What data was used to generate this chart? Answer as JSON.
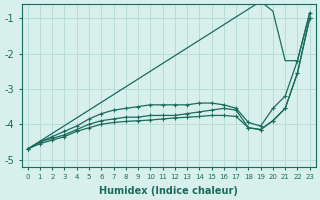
{
  "x": [
    0,
    1,
    2,
    3,
    4,
    5,
    6,
    7,
    8,
    9,
    10,
    11,
    12,
    13,
    14,
    15,
    16,
    17,
    18,
    19,
    20,
    21,
    22,
    23
  ],
  "line_diagonal": [
    -4.7,
    -4.48,
    -4.26,
    -4.04,
    -3.82,
    -3.6,
    -3.38,
    -3.16,
    -2.94,
    -2.72,
    -2.5,
    -2.28,
    -2.06,
    -1.84,
    -1.62,
    -1.4,
    -1.18,
    -0.96,
    -0.74,
    -0.52,
    -0.8,
    -2.2,
    -2.2,
    -0.85
  ],
  "line_upper": [
    -4.7,
    -4.5,
    -4.35,
    -4.2,
    -4.05,
    -3.85,
    -3.7,
    -3.6,
    -3.55,
    -3.5,
    -3.45,
    -3.45,
    -3.45,
    -3.45,
    -3.4,
    -3.4,
    -3.45,
    -3.55,
    -3.95,
    -4.05,
    -3.55,
    -3.2,
    -2.2,
    -0.85
  ],
  "line_mid": [
    -4.7,
    -4.5,
    -4.4,
    -4.3,
    -4.15,
    -4.0,
    -3.9,
    -3.85,
    -3.8,
    -3.8,
    -3.75,
    -3.75,
    -3.75,
    -3.7,
    -3.65,
    -3.6,
    -3.55,
    -3.6,
    -4.1,
    -4.15,
    -3.9,
    -3.55,
    -2.55,
    -1.0
  ],
  "line_lower": [
    -4.7,
    -4.55,
    -4.45,
    -4.35,
    -4.2,
    -4.1,
    -4.0,
    -3.95,
    -3.92,
    -3.9,
    -3.88,
    -3.85,
    -3.82,
    -3.8,
    -3.78,
    -3.75,
    -3.75,
    -3.78,
    -4.1,
    -4.15,
    -3.9,
    -3.55,
    -2.55,
    -1.0
  ],
  "color": "#1a6b5c",
  "bg_color": "#d8f0ec",
  "grid_color": "#b8dcd6",
  "yticks": [
    -1,
    -2,
    -3,
    -4,
    -5
  ],
  "ylabel_ticks": [
    "-1",
    "-2",
    "-3",
    "-4",
    "-5"
  ],
  "xticks": [
    0,
    1,
    2,
    3,
    4,
    5,
    6,
    7,
    8,
    9,
    10,
    11,
    12,
    13,
    14,
    15,
    16,
    17,
    18,
    19,
    20,
    21,
    22,
    23
  ],
  "xlabel": "Humidex (Indice chaleur)",
  "ylim": [
    -5.2,
    -0.6
  ],
  "xlim": [
    -0.5,
    23.5
  ]
}
